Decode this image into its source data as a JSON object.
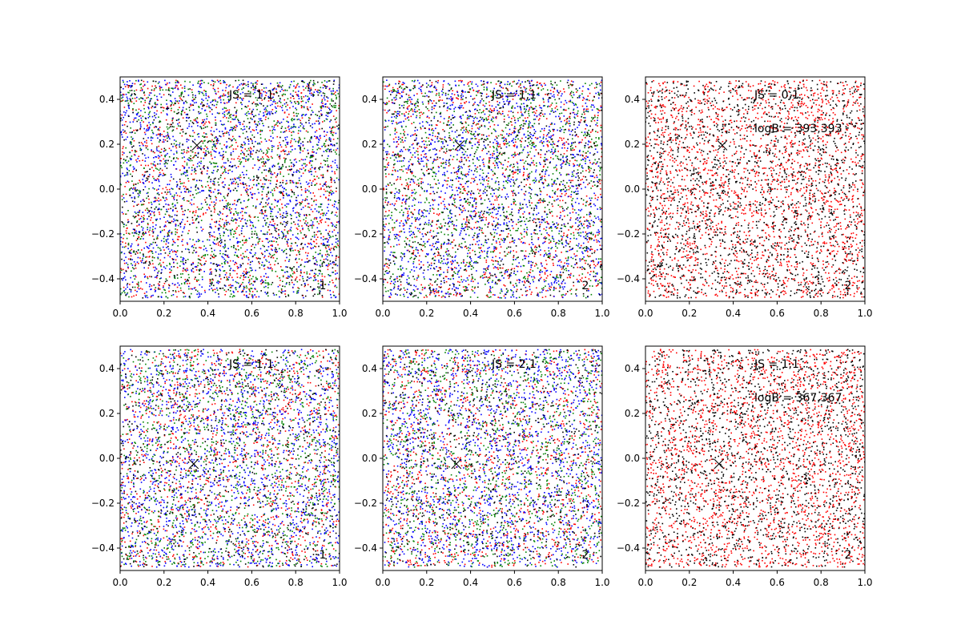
{
  "chart_data": [
    {
      "type": "scatter",
      "panel": "row1-col1",
      "annotations": {
        "js": "JS = 1,1",
        "logb": "",
        "index": "1"
      },
      "xlim": [
        0.0,
        1.0
      ],
      "ylim": [
        -0.5,
        0.5
      ],
      "x_ticks": [
        "0.0",
        "0.2",
        "0.4",
        "0.6",
        "0.8",
        "1.0"
      ],
      "y_ticks": [
        "−0.4",
        "−0.2",
        "0.0",
        "0.2",
        "0.4"
      ],
      "marker": {
        "x": 0.35,
        "y": 0.195,
        "symbol": "x"
      },
      "series": [
        {
          "color": "#ff0000",
          "points": 1200
        },
        {
          "color": "#0000ff",
          "points": 1600
        },
        {
          "color": "#008000",
          "points": 1200
        },
        {
          "color": "#000000",
          "points": 700
        }
      ]
    },
    {
      "type": "scatter",
      "panel": "row1-col2",
      "annotations": {
        "js": "JS = 1,1",
        "logb": "",
        "index": "2"
      },
      "xlim": [
        0.0,
        1.0
      ],
      "ylim": [
        -0.5,
        0.5
      ],
      "x_ticks": [
        "0.0",
        "0.2",
        "0.4",
        "0.6",
        "0.8",
        "1.0"
      ],
      "y_ticks": [
        "−0.4",
        "−0.2",
        "0.0",
        "0.2",
        "0.4"
      ],
      "marker": {
        "x": 0.35,
        "y": 0.195,
        "symbol": "x"
      },
      "series": [
        {
          "color": "#ff0000",
          "points": 1200
        },
        {
          "color": "#0000ff",
          "points": 1600
        },
        {
          "color": "#008000",
          "points": 1200
        },
        {
          "color": "#000000",
          "points": 700
        }
      ]
    },
    {
      "type": "scatter",
      "panel": "row1-col3",
      "annotations": {
        "js": "JS = 0,1",
        "logb": "logB = 393,393",
        "index": "2"
      },
      "xlim": [
        0.0,
        1.0
      ],
      "ylim": [
        -0.5,
        0.5
      ],
      "x_ticks": [
        "0.0",
        "0.2",
        "0.4",
        "0.6",
        "0.8",
        "1.0"
      ],
      "y_ticks": [
        "−0.4",
        "−0.2",
        "0.0",
        "0.2",
        "0.4"
      ],
      "marker": {
        "x": 0.35,
        "y": 0.195,
        "symbol": "x"
      },
      "series": [
        {
          "color": "#ff0000",
          "points": 2200
        },
        {
          "color": "#000000",
          "points": 1800
        }
      ]
    },
    {
      "type": "scatter",
      "panel": "row2-col1",
      "annotations": {
        "js": "JS = 1,1",
        "logb": "",
        "index": "1"
      },
      "xlim": [
        0.0,
        1.0
      ],
      "ylim": [
        -0.5,
        0.5
      ],
      "x_ticks": [
        "0.0",
        "0.2",
        "0.4",
        "0.6",
        "0.8",
        "1.0"
      ],
      "y_ticks": [
        "−0.4",
        "−0.2",
        "0.0",
        "0.2",
        "0.4"
      ],
      "marker": {
        "x": 0.335,
        "y": -0.025,
        "symbol": "x"
      },
      "series": [
        {
          "color": "#ff0000",
          "points": 1200
        },
        {
          "color": "#0000ff",
          "points": 1600
        },
        {
          "color": "#008000",
          "points": 1200
        },
        {
          "color": "#000000",
          "points": 700
        }
      ]
    },
    {
      "type": "scatter",
      "panel": "row2-col2",
      "annotations": {
        "js": "JS = 2,1",
        "logb": "",
        "index": "2"
      },
      "xlim": [
        0.0,
        1.0
      ],
      "ylim": [
        -0.5,
        0.5
      ],
      "x_ticks": [
        "0.0",
        "0.2",
        "0.4",
        "0.6",
        "0.8",
        "1.0"
      ],
      "y_ticks": [
        "−0.4",
        "−0.2",
        "0.0",
        "0.2",
        "0.4"
      ],
      "marker": {
        "x": 0.335,
        "y": -0.025,
        "symbol": "x"
      },
      "series": [
        {
          "color": "#ff0000",
          "points": 1200
        },
        {
          "color": "#0000ff",
          "points": 1600
        },
        {
          "color": "#008000",
          "points": 1200
        },
        {
          "color": "#000000",
          "points": 700
        }
      ]
    },
    {
      "type": "scatter",
      "panel": "row2-col3",
      "annotations": {
        "js": "JS = 1,1",
        "logb": "logB = 367,367",
        "index": "2"
      },
      "xlim": [
        0.0,
        1.0
      ],
      "ylim": [
        -0.5,
        0.5
      ],
      "x_ticks": [
        "0.0",
        "0.2",
        "0.4",
        "0.6",
        "0.8",
        "1.0"
      ],
      "y_ticks": [
        "−0.4",
        "−0.2",
        "0.0",
        "0.2",
        "0.4"
      ],
      "marker": {
        "x": 0.335,
        "y": -0.025,
        "symbol": "x"
      },
      "series": [
        {
          "color": "#ff0000",
          "points": 2200
        },
        {
          "color": "#000000",
          "points": 1800
        }
      ]
    }
  ]
}
